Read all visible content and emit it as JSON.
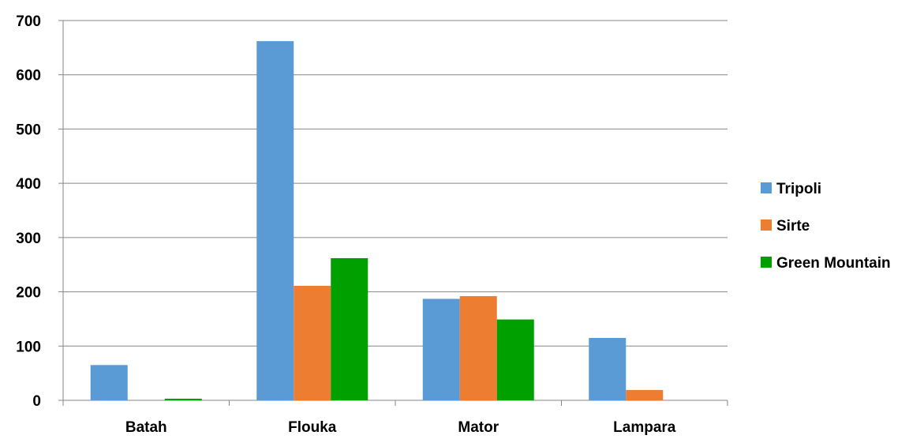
{
  "chart_data": {
    "type": "bar",
    "title": "",
    "xlabel": "",
    "ylabel": "",
    "categories": [
      "Batah",
      "Flouka",
      "Mator",
      "Lampara"
    ],
    "ylim": [
      0,
      700
    ],
    "yticks": [
      0,
      100,
      200,
      300,
      400,
      500,
      600,
      700
    ],
    "grid": true,
    "legend_position": "right",
    "series": [
      {
        "name": "Tripoli",
        "color": "#5b9bd5",
        "values": [
          65,
          662,
          187,
          115
        ]
      },
      {
        "name": "Sirte",
        "color": "#ed7d31",
        "values": [
          0,
          211,
          192,
          19
        ]
      },
      {
        "name": "Green Mountain",
        "color": "#00a000",
        "values": [
          3,
          262,
          149,
          0
        ]
      }
    ]
  }
}
